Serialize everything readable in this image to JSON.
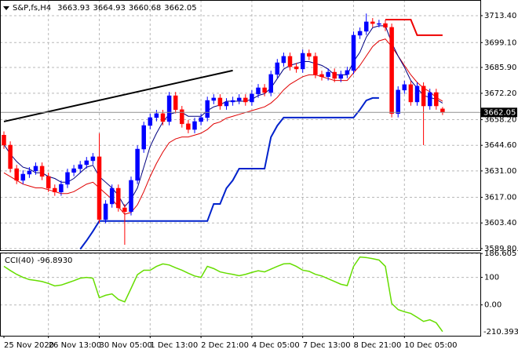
{
  "chart_data": {
    "type": "candlestick",
    "title": "S&P,fs,H4",
    "categories": [
      "25 Nov 2020",
      null,
      null,
      null,
      null,
      null,
      null,
      "26 Nov 13:00",
      null,
      null,
      null,
      null,
      null,
      null,
      null,
      "30 Nov 05:00",
      null,
      null,
      null,
      null,
      null,
      null,
      null,
      "1 Dec 13:00",
      null,
      null,
      null,
      null,
      null,
      null,
      null,
      "2 Dec 21:00",
      null,
      null,
      null,
      null,
      null,
      null,
      null,
      "4 Dec 05:00",
      null,
      null,
      null,
      null,
      null,
      null,
      null,
      "7 Dec 13:00",
      null,
      null,
      null,
      null,
      null,
      null,
      null,
      "8 Dec 21:00",
      null,
      null,
      null,
      null,
      null,
      null,
      null,
      "10 Dec 05:00",
      null,
      null,
      null,
      null,
      null,
      null
    ],
    "open": [
      3650,
      3644.7,
      3632.2,
      3626,
      3629.3,
      3631,
      3633.5,
      3628.1,
      3621.8,
      3619.8,
      3623.9,
      3630.2,
      3632.2,
      3634.3,
      3636.4,
      3638.5,
      3605.2,
      3613.5,
      3621.8,
      3611.4,
      3609.4,
      3626,
      3642.6,
      3655.1,
      3659.3,
      3661.4,
      3657.2,
      3670.9,
      3663.5,
      3656,
      3653,
      3657.2,
      3659.3,
      3668.4,
      3669.7,
      3665.5,
      3667.6,
      3668.4,
      3669.7,
      3667.6,
      3671.8,
      3675.1,
      3672.6,
      3682.2,
      3688.4,
      3691.8,
      3686.3,
      3685.1,
      3693.4,
      3691.8,
      3682.2,
      3681,
      3683.4,
      3680.1,
      3682.2,
      3684.3,
      3703,
      3705.1,
      3710.1,
      3709.2,
      3709.2,
      3707.2,
      3661.4,
      3673.9,
      3676.8,
      3667.6,
      3676,
      3665.5,
      3672.6,
      3663.93
    ],
    "high": [
      3652,
      3646.7,
      3634.2,
      3631.3,
      3633,
      3635.5,
      3635.5,
      3630.1,
      3623.8,
      3625.9,
      3632.2,
      3634.2,
      3636.3,
      3638.4,
      3640.5,
      3651,
      3615.5,
      3623.8,
      3623.8,
      3613.4,
      3628,
      3644.6,
      3657.1,
      3661.3,
      3663.4,
      3663.4,
      3672.9,
      3672.9,
      3665.5,
      3658,
      3659.2,
      3661.3,
      3670.4,
      3671.7,
      3671.7,
      3669.6,
      3670.4,
      3671.7,
      3671.7,
      3673.8,
      3677.1,
      3677.1,
      3684.2,
      3690.4,
      3693.8,
      3693.8,
      3688.3,
      3695.4,
      3695.4,
      3693.8,
      3684.2,
      3685.4,
      3685.4,
      3684.2,
      3686.3,
      3705,
      3707.1,
      3714.5,
      3712.1,
      3711.2,
      3711.2,
      3709.2,
      3675.9,
      3678.8,
      3678.8,
      3678,
      3678,
      3674.6,
      3674.6,
      3664.93
    ],
    "low": [
      3642.7,
      3630.2,
      3624,
      3624,
      3627.3,
      3629,
      3626.1,
      3619.8,
      3617.8,
      3617.8,
      3621.9,
      3628.2,
      3630.2,
      3632.3,
      3634.4,
      3603.2,
      3603.2,
      3611.5,
      3609.4,
      3591.8,
      3607.4,
      3624,
      3640.6,
      3653.1,
      3657.3,
      3655.2,
      3655.2,
      3661.5,
      3654,
      3651,
      3651,
      3655.2,
      3657.3,
      3666.4,
      3663.5,
      3663.5,
      3665.6,
      3666.4,
      3665.6,
      3665.6,
      3669.8,
      3670.6,
      3670.6,
      3680.2,
      3686.4,
      3684.3,
      3683.1,
      3683.1,
      3689.8,
      3680.2,
      3679,
      3679,
      3678.1,
      3678.1,
      3680.2,
      3682.3,
      3701,
      3703.1,
      3707.2,
      3707.2,
      3705.2,
      3659.4,
      3659.4,
      3671.9,
      3665.6,
      3665.6,
      3644.7,
      3663.5,
      3663.5,
      3660.68
    ],
    "close": [
      3644.7,
      3632.2,
      3626,
      3629.3,
      3631,
      3633.5,
      3628.1,
      3621.8,
      3619.8,
      3623.9,
      3630.2,
      3632.2,
      3634.3,
      3636.4,
      3638.5,
      3605.2,
      3613.5,
      3621.8,
      3611.4,
      3609.4,
      3626,
      3642.6,
      3655.1,
      3659.3,
      3661.4,
      3657.2,
      3670.9,
      3663.5,
      3656,
      3653,
      3657.2,
      3659.3,
      3668.4,
      3669.7,
      3665.5,
      3667.6,
      3668.4,
      3669.7,
      3667.6,
      3671.8,
      3675.1,
      3672.6,
      3682.2,
      3688.4,
      3691.8,
      3686.3,
      3685.1,
      3693.4,
      3691.8,
      3682.2,
      3681,
      3683.4,
      3680.1,
      3682.2,
      3684.3,
      3703,
      3705.1,
      3710.1,
      3709.2,
      3709.2,
      3707.2,
      3661.4,
      3673.9,
      3676.8,
      3667.6,
      3676,
      3665.5,
      3672.6,
      3665.5,
      3662.05
    ],
    "up_color": "#0000ff",
    "down_color": "#ff0000",
    "ylim": [
      3588.5,
      3721.7
    ],
    "yticks": [
      {
        "value": 3713.4,
        "label": "3713.40"
      },
      {
        "value": 3699.1,
        "label": "3699.10"
      },
      {
        "value": 3685.9,
        "label": "3685.90"
      },
      {
        "value": 3672.2,
        "label": "3672.20"
      },
      {
        "value": 3658.2,
        "label": "3658.20"
      },
      {
        "value": 3644.6,
        "label": "3644.60"
      },
      {
        "value": 3631,
        "label": "3631.00"
      },
      {
        "value": 3617,
        "label": "3617.00"
      },
      {
        "value": 3603.4,
        "label": "3603.40"
      },
      {
        "value": 3589.8,
        "label": "3589.80"
      }
    ],
    "grid": true,
    "ma_fast": {
      "color": "#000080",
      "values": [
        3645,
        3640,
        3636,
        3633,
        3632,
        3630,
        3630,
        3628,
        3627,
        3625,
        3625,
        3627,
        3630,
        3633,
        3634,
        3628,
        3625,
        3622,
        3618,
        3612,
        3616,
        3622,
        3633,
        3644,
        3651,
        3657,
        3661,
        3662,
        3662,
        3660,
        3660,
        3660,
        3663,
        3665,
        3666,
        3668,
        3668,
        3668,
        3668,
        3669,
        3671,
        3672,
        3675,
        3680,
        3685,
        3687,
        3688,
        3689,
        3689,
        3688,
        3687,
        3685,
        3682,
        3682,
        3682,
        3689,
        3694,
        3702,
        3707,
        3708,
        3708,
        3699,
        3692,
        3686,
        3679,
        3675,
        3671,
        3670,
        3669,
        3667
      ]
    },
    "ma_slow": {
      "color": "#e00000",
      "values": [
        3630,
        3628,
        3626,
        3624,
        3623,
        3622,
        3622,
        3621,
        3620,
        3619,
        3619,
        3620,
        3622,
        3624,
        3625,
        3622,
        3619,
        3616,
        3612,
        3608,
        3609,
        3613,
        3620,
        3628,
        3635,
        3641,
        3646,
        3648,
        3649,
        3649,
        3650,
        3651,
        3653,
        3656,
        3657,
        3659,
        3660,
        3661,
        3662,
        3663,
        3664,
        3665,
        3667,
        3670,
        3674,
        3677,
        3679,
        3681,
        3682,
        3682,
        3681,
        3680,
        3679,
        3679,
        3679,
        3683,
        3687,
        3692,
        3697,
        3700,
        3701,
        3697,
        3692,
        3687,
        3682,
        3678,
        3675,
        3673,
        3670,
        3668
      ]
    },
    "stop_long": {
      "color": "#0022cc",
      "values": [
        null,
        null,
        null,
        null,
        null,
        null,
        null,
        null,
        null,
        null,
        null,
        null,
        3589.5,
        3594,
        3599,
        3604.4,
        3604.4,
        3604.4,
        3604.4,
        3604.4,
        3604.4,
        3604.4,
        3604.4,
        3604.4,
        3604.4,
        3604.4,
        3604.4,
        3604.4,
        3604.4,
        3604.4,
        3604.4,
        3604.4,
        3604.4,
        3613.5,
        3613.5,
        3621.8,
        3626,
        3632.2,
        3632.2,
        3632.2,
        3632.2,
        3632.2,
        3648.9,
        3655,
        3659.3,
        3659.3,
        3659.3,
        3659.3,
        3659.3,
        3659.3,
        3659.3,
        3659.3,
        3659.3,
        3659.3,
        3659.3,
        3659.3,
        3663.5,
        3668.4,
        3669.7,
        3669.7,
        null,
        null,
        null,
        null,
        null,
        null,
        null,
        null,
        null,
        null
      ]
    },
    "stop_short": {
      "color": "#ee0000",
      "values": [
        null,
        null,
        null,
        null,
        null,
        null,
        null,
        null,
        null,
        null,
        null,
        null,
        null,
        null,
        null,
        null,
        null,
        null,
        null,
        null,
        null,
        null,
        null,
        null,
        null,
        null,
        null,
        null,
        null,
        null,
        null,
        null,
        null,
        null,
        null,
        null,
        null,
        null,
        null,
        null,
        null,
        null,
        null,
        null,
        null,
        null,
        null,
        null,
        null,
        null,
        null,
        null,
        null,
        null,
        null,
        null,
        null,
        null,
        null,
        null,
        3711.3,
        3711.3,
        3711.3,
        3711.3,
        3711.3,
        3703,
        3703,
        3703,
        3703,
        3703
      ]
    },
    "trendline": {
      "color": "#000000",
      "values": [
        3657.2,
        3684.3
      ]
    },
    "cci": {
      "name": "CCI(40)",
      "value_label": "-96.8930",
      "color": "#66dd00",
      "values": [
        140,
        125,
        111,
        100,
        92,
        89,
        85,
        78,
        69,
        72,
        80,
        88,
        97,
        100,
        97,
        26,
        35,
        40,
        20,
        11,
        60,
        110,
        126,
        126,
        140,
        149,
        145,
        135,
        126,
        115,
        105,
        100,
        140,
        132,
        120,
        115,
        111,
        106,
        111,
        118,
        124,
        120,
        130,
        140,
        149,
        150,
        140,
        126,
        122,
        111,
        105,
        95,
        85,
        75,
        70,
        140,
        174,
        172,
        168,
        163,
        140,
        5,
        -17,
        -25,
        -31,
        -45,
        -60,
        -54,
        -65,
        -96.893
      ],
      "ylim": [
        -112,
        190
      ],
      "yticks": [
        186.6057,
        100,
        {
          "value": 0,
          "label": "0.00"
        }
      ],
      "min_label": "-210.393"
    }
  }
}
